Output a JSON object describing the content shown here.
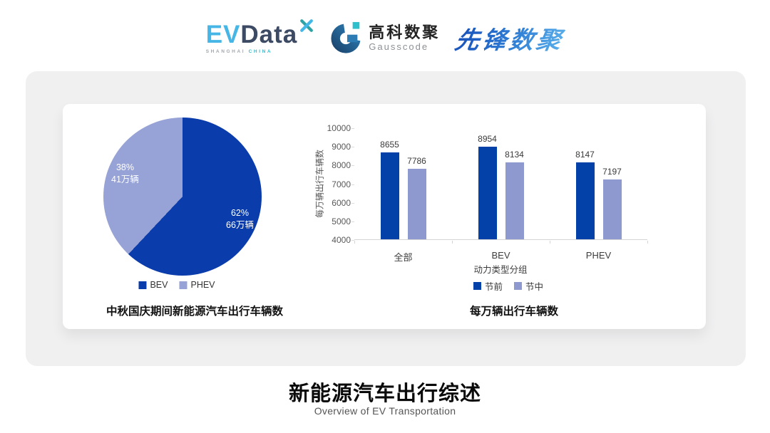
{
  "header": {
    "evdata": {
      "ev": "EV",
      "data": "Data",
      "sub_left": "SHANGHAI",
      "sub_right": "CHINA"
    },
    "gausscode": {
      "cn": "高科数聚",
      "en": "Gausscode"
    },
    "xianfeng": {
      "text": "先锋数聚"
    }
  },
  "colors": {
    "dark_blue": "#0341a8",
    "pie_dark_blue": "#0b3cab",
    "light_periwinkle": "#8e99cf",
    "pie_light_periwinkle": "#97a2d6",
    "panel_gray": "#f0f0f1"
  },
  "chart_data": [
    {
      "type": "pie",
      "title": "中秋国庆期间新能源汽车出行车辆数",
      "slices": [
        {
          "label": "BEV",
          "percent": 62,
          "value_label": "66万辆",
          "color": "#0b3cab"
        },
        {
          "label": "PHEV",
          "percent": 38,
          "value_label": "41万辆",
          "color": "#97a2d6"
        }
      ],
      "start_angle": "top",
      "direction": "clockwise",
      "legend_position": "bottom"
    },
    {
      "type": "bar",
      "title": "每万辆出行车辆数",
      "categories": [
        "全部",
        "BEV",
        "PHEV"
      ],
      "series": [
        {
          "name": "节前",
          "color": "#0341a8",
          "values": [
            8655,
            8954,
            8147
          ]
        },
        {
          "name": "节中",
          "color": "#8e99cf",
          "values": [
            7786,
            8134,
            7197
          ]
        }
      ],
      "xlabel": "动力类型分组",
      "ylabel": "每万辆出行车辆数",
      "ylim": [
        4000,
        10000
      ],
      "ytick_step": 1000,
      "grid": false,
      "legend_position": "bottom"
    }
  ],
  "footer": {
    "title": "新能源汽车出行综述",
    "subtitle": "Overview of EV Transportation"
  }
}
